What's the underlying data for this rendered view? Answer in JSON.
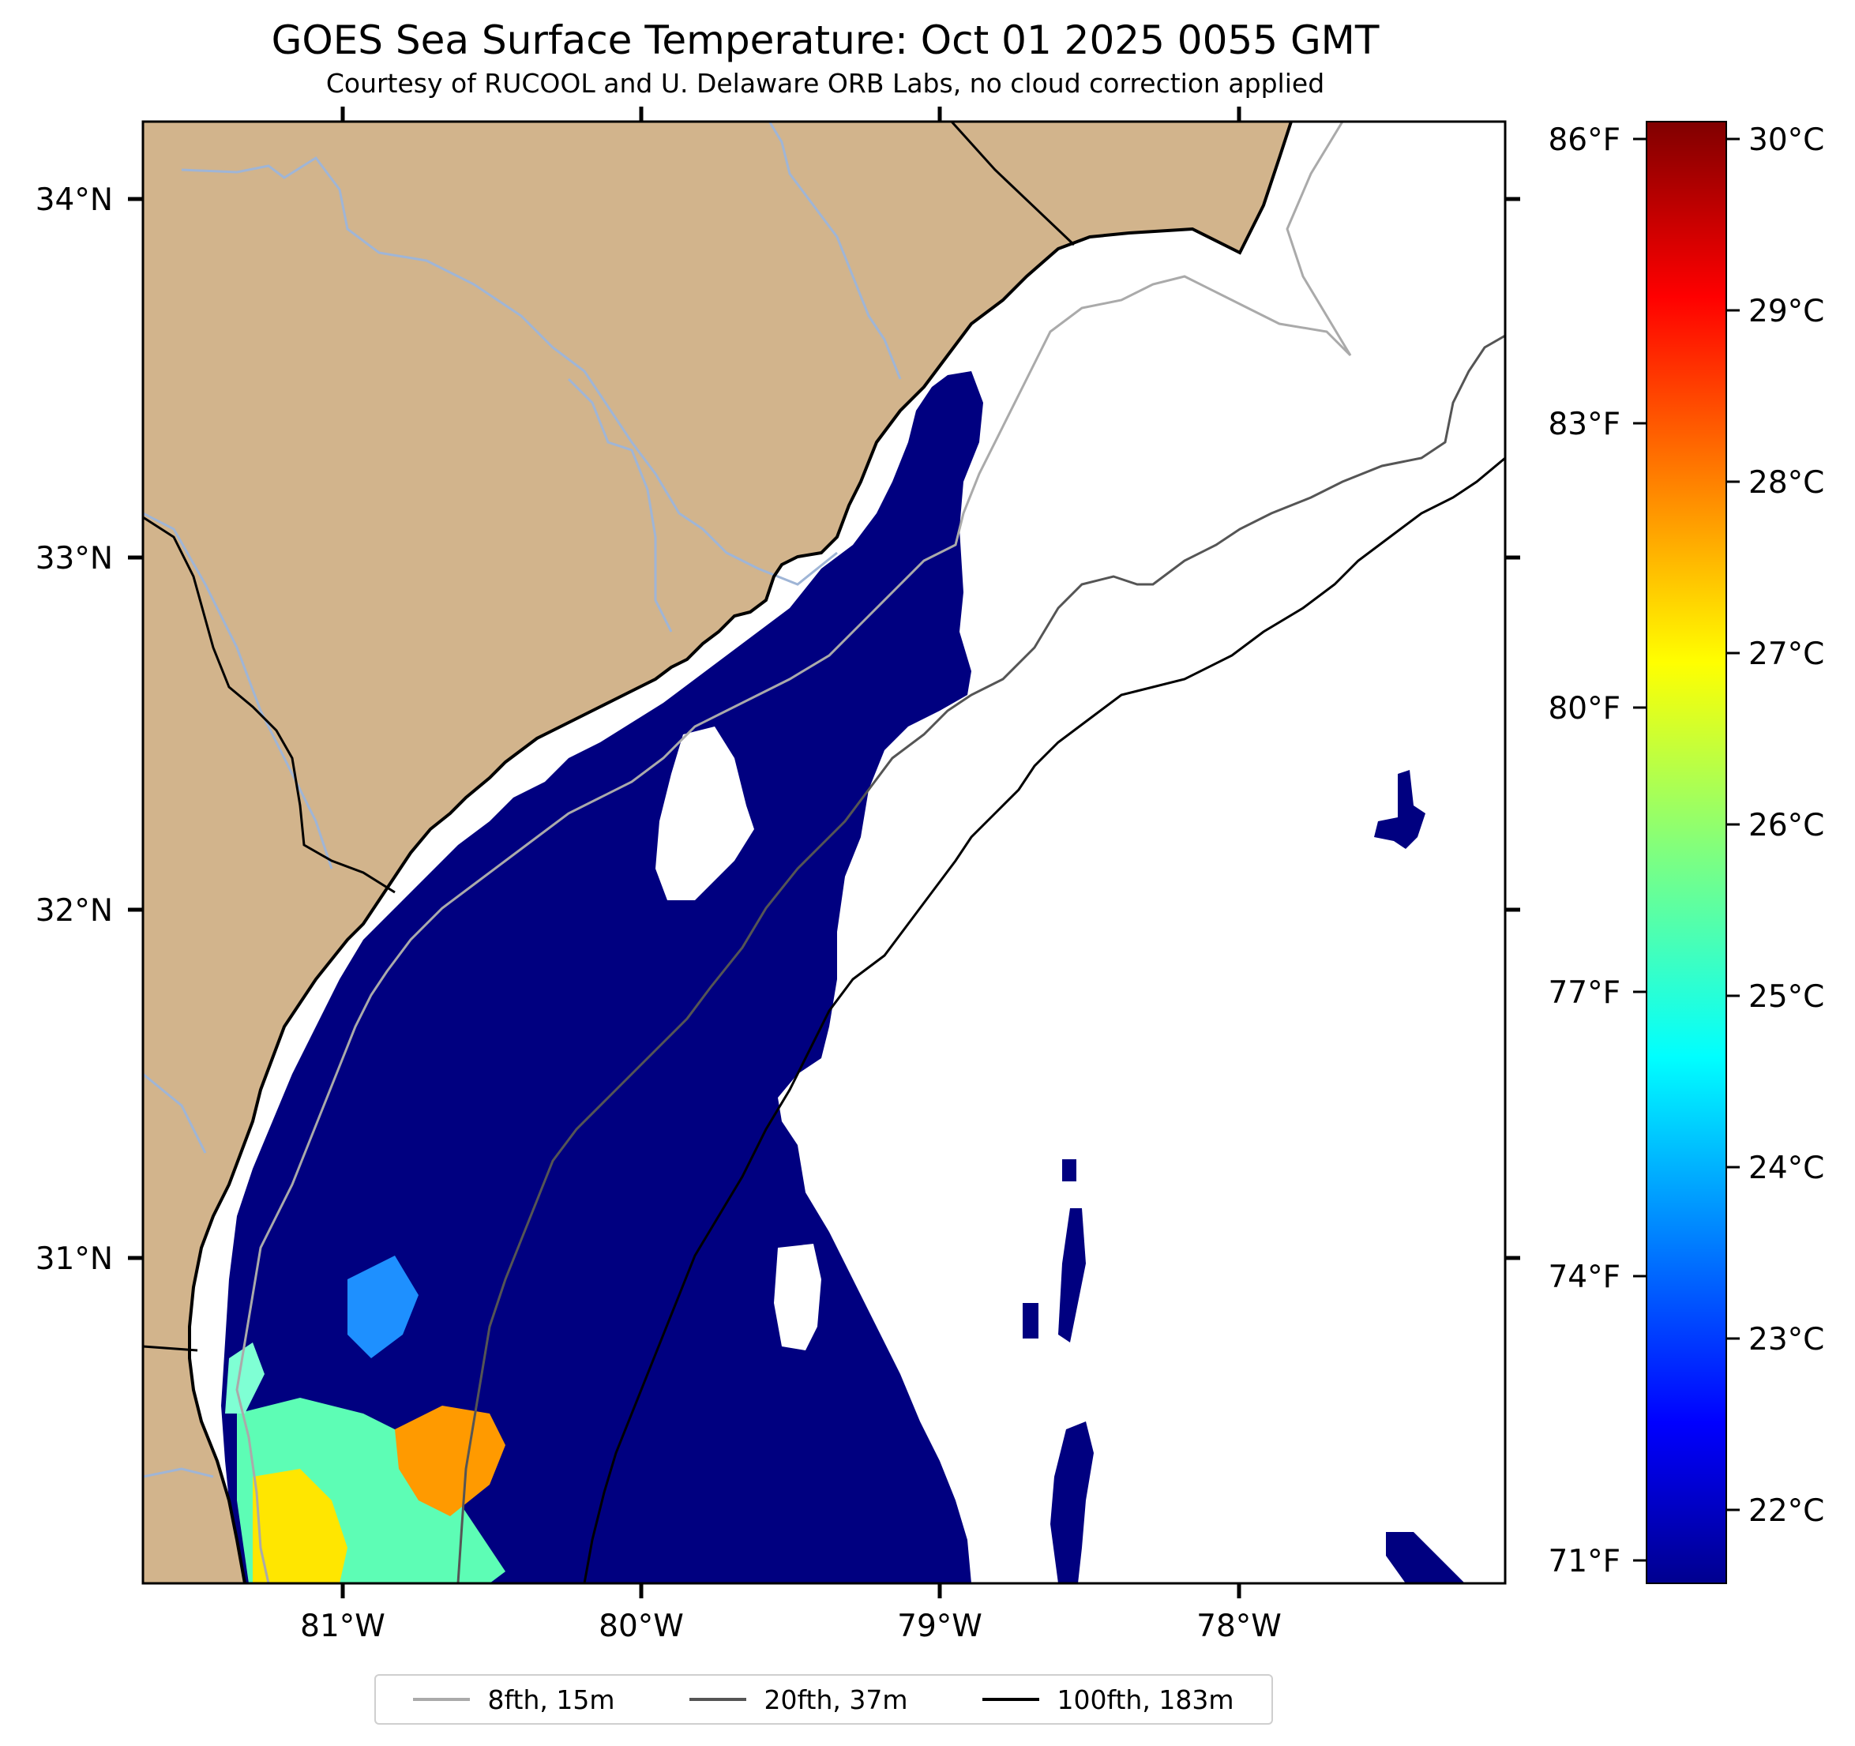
{
  "title": "GOES Sea Surface Temperature: Oct 01 2025 0055 GMT",
  "subtitle": "Courtesy of RUCOOL and U. Delaware ORB Labs, no cloud correction applied",
  "map": {
    "region": "South Carolina / Georgia coast",
    "extent": {
      "lon": [
        -81.67,
        -77.12
      ],
      "lat": [
        30.09,
        34.22
      ]
    },
    "land_color": "#d2b48c",
    "water_no_data_color": "#ffffff",
    "lat_ticks": [
      "34°N",
      "33°N",
      "32°N",
      "31°N"
    ],
    "lon_ticks": [
      "81°W",
      "80°W",
      "79°W",
      "78°W"
    ]
  },
  "colorbar": {
    "colormap": "jet",
    "range_c": [
      21.6,
      30.1
    ],
    "celsius_ticks": [
      "30°C",
      "29°C",
      "28°C",
      "27°C",
      "26°C",
      "25°C",
      "24°C",
      "23°C",
      "22°C"
    ],
    "fahrenheit_ticks": [
      "86°F",
      "83°F",
      "80°F",
      "77°F",
      "74°F",
      "71°F"
    ]
  },
  "legend": [
    {
      "label": "8fth, 15m",
      "color": "#aaaaaa"
    },
    {
      "label": "20fth, 37m",
      "color": "#555555"
    },
    {
      "label": "100fth, 183m",
      "color": "#000000"
    }
  ]
}
